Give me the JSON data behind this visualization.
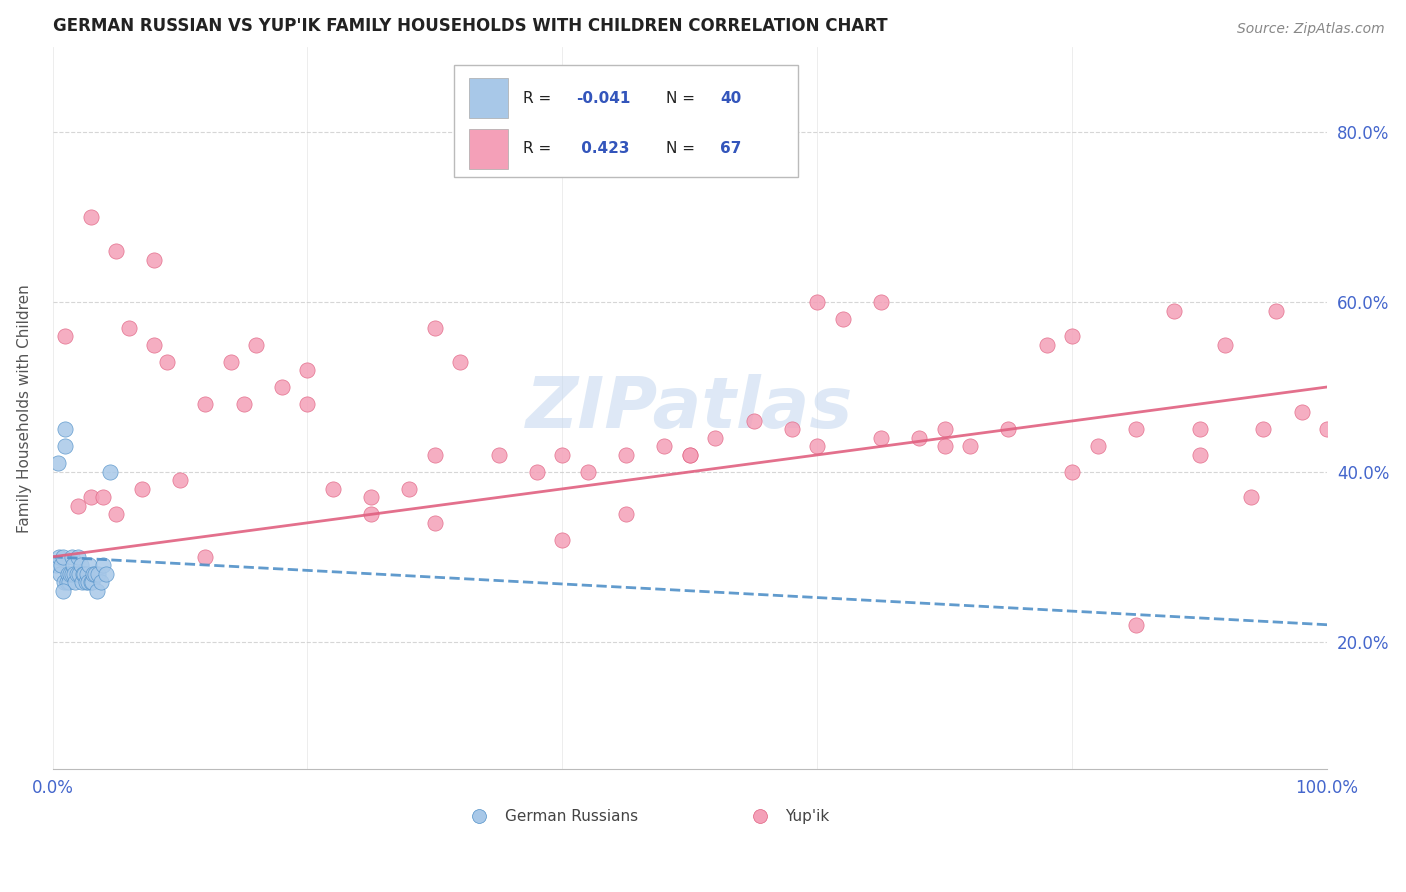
{
  "title": "GERMAN RUSSIAN VS YUP'IK FAMILY HOUSEHOLDS WITH CHILDREN CORRELATION CHART",
  "source": "Source: ZipAtlas.com",
  "ylabel": "Family Households with Children",
  "legend_label1": "German Russians",
  "legend_label2": "Yup'ik",
  "watermark": "ZIPatlas",
  "blue_dot_color": "#a8c8e8",
  "pink_dot_color": "#f4a0b8",
  "line_blue_color": "#5090c8",
  "line_pink_color": "#e06080",
  "background_color": "#ffffff",
  "grid_color": "#cccccc",
  "title_color": "#222222",
  "source_color": "#888888",
  "tick_color": "#4466cc",
  "ytick_values": [
    20,
    40,
    60,
    80
  ],
  "xlim": [
    0,
    100
  ],
  "ylim": [
    5,
    90
  ],
  "german_russian_x": [
    0.3,
    0.5,
    0.6,
    0.7,
    0.8,
    0.9,
    1.0,
    1.0,
    1.1,
    1.2,
    1.3,
    1.4,
    1.5,
    1.5,
    1.6,
    1.7,
    1.8,
    1.9,
    2.0,
    2.1,
    2.2,
    2.3,
    2.4,
    2.5,
    2.6,
    2.7,
    2.8,
    2.9,
    3.0,
    3.1,
    3.2,
    3.3,
    3.5,
    3.6,
    3.8,
    4.0,
    4.2,
    4.5,
    0.4,
    0.8
  ],
  "german_russian_y": [
    29,
    30,
    28,
    29,
    30,
    27,
    45,
    43,
    27,
    28,
    27,
    28,
    28,
    30,
    29,
    28,
    27,
    28,
    30,
    28,
    29,
    27,
    28,
    28,
    27,
    28,
    27,
    29,
    27,
    27,
    28,
    28,
    26,
    28,
    27,
    29,
    28,
    40,
    41,
    26
  ],
  "yupik_x": [
    1.0,
    2.0,
    3.0,
    4.0,
    5.0,
    6.0,
    7.0,
    8.0,
    9.0,
    10.0,
    12.0,
    14.0,
    16.0,
    18.0,
    20.0,
    22.0,
    25.0,
    28.0,
    30.0,
    32.0,
    35.0,
    38.0,
    40.0,
    42.0,
    45.0,
    48.0,
    50.0,
    52.0,
    55.0,
    58.0,
    60.0,
    62.0,
    65.0,
    68.0,
    70.0,
    72.0,
    75.0,
    78.0,
    80.0,
    82.0,
    85.0,
    88.0,
    90.0,
    92.0,
    94.0,
    96.0,
    98.0,
    100.0,
    3.0,
    5.0,
    8.0,
    12.0,
    15.0,
    20.0,
    25.0,
    30.0,
    40.0,
    50.0,
    60.0,
    70.0,
    80.0,
    90.0,
    95.0,
    30.0,
    45.0,
    65.0,
    85.0
  ],
  "yupik_y": [
    56,
    36,
    37,
    37,
    35,
    57,
    38,
    55,
    53,
    39,
    30,
    53,
    55,
    50,
    52,
    38,
    37,
    38,
    57,
    53,
    42,
    40,
    42,
    40,
    42,
    43,
    42,
    44,
    46,
    45,
    60,
    58,
    60,
    44,
    45,
    43,
    45,
    55,
    56,
    43,
    45,
    59,
    45,
    55,
    37,
    59,
    47,
    45,
    70,
    66,
    65,
    48,
    48,
    48,
    35,
    34,
    32,
    42,
    43,
    43,
    40,
    42,
    45,
    42,
    35,
    44,
    22
  ]
}
